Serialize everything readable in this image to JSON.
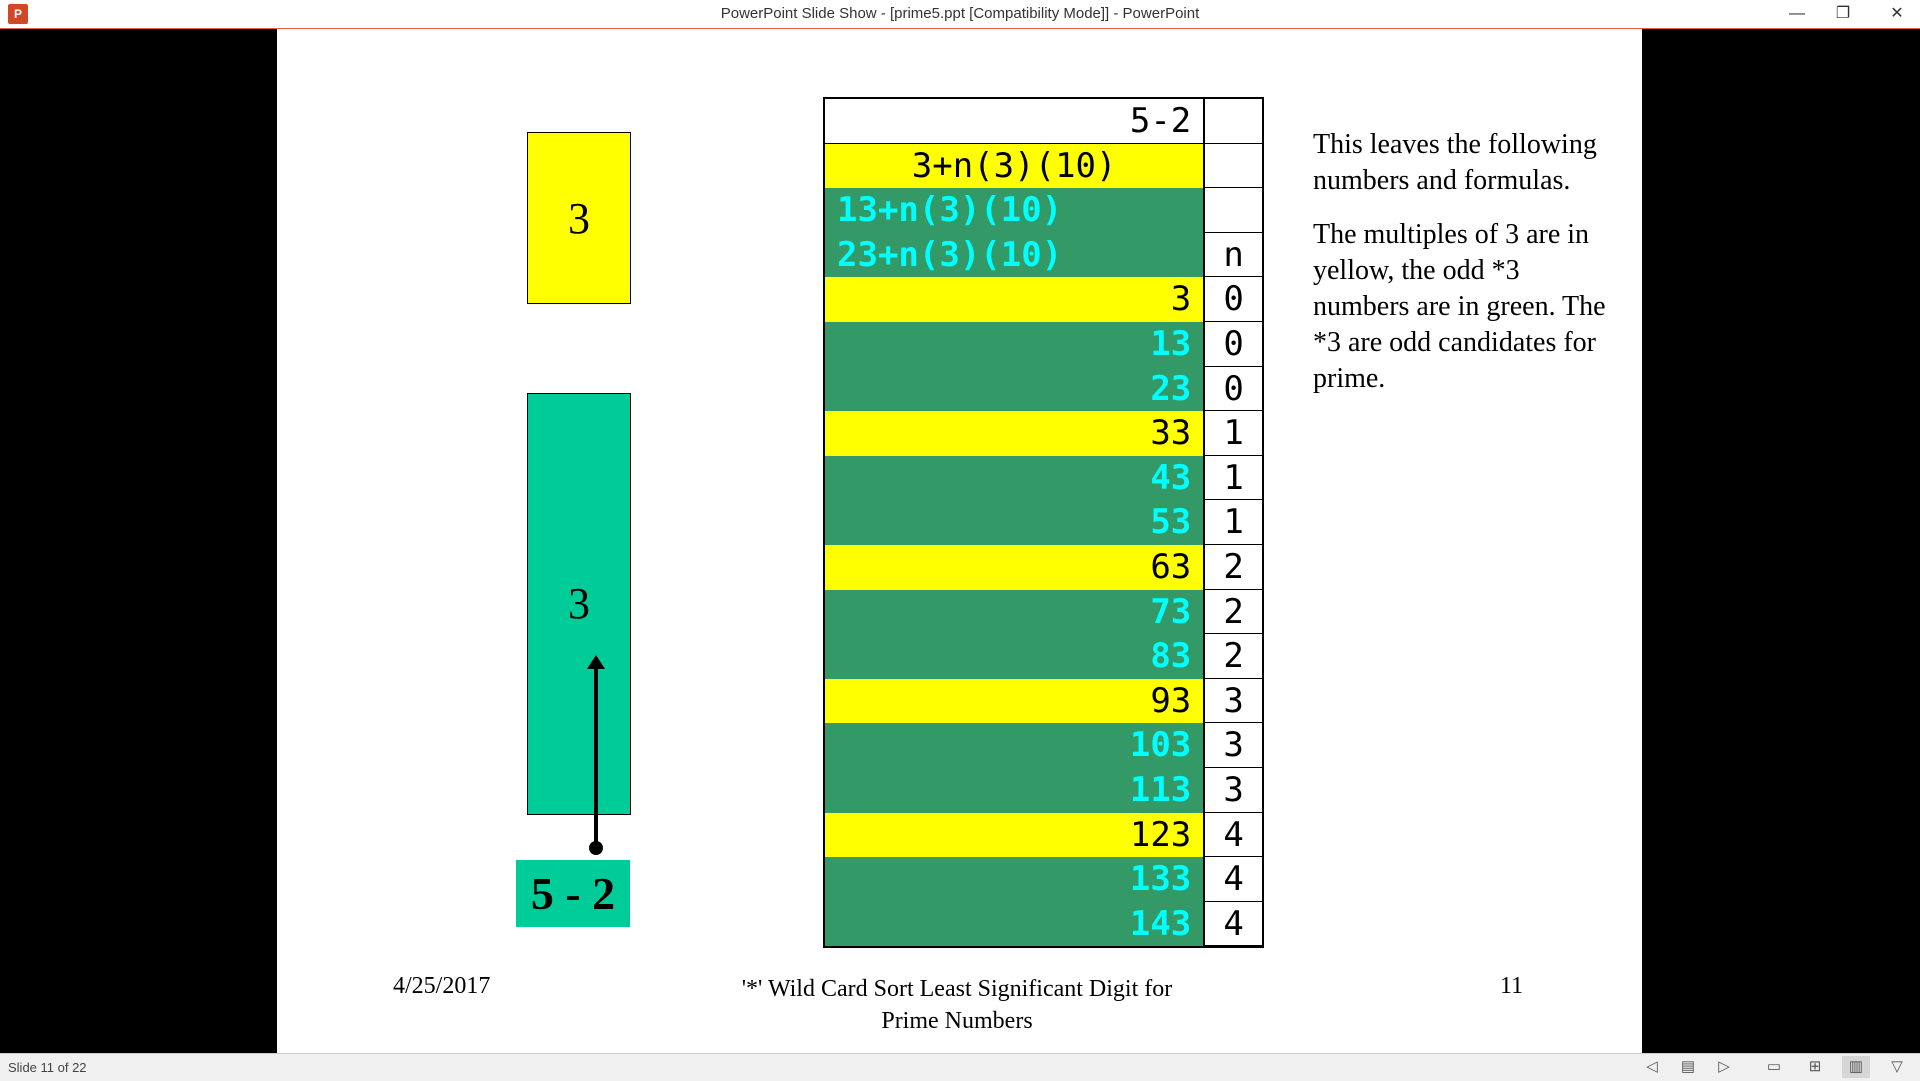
{
  "window": {
    "title": "PowerPoint Slide Show - [prime5.ppt [Compatibility Mode]] - PowerPoint",
    "app_icon_text": "P",
    "minimize": "—",
    "restore": "❐",
    "close": "✕"
  },
  "slide": {
    "box_yellow_label": "3",
    "box_green_label": "3",
    "label_bottom": "5 - 2",
    "table": {
      "rows": [
        {
          "a": "5-2",
          "b": "",
          "style": "white",
          "align": "right"
        },
        {
          "a": "3+n(3)(10)",
          "b": "",
          "style": "yellow",
          "align": "center"
        },
        {
          "a": "13+n(3)(10)",
          "b": "",
          "style": "green",
          "align": "left"
        },
        {
          "a": "23+n(3)(10)",
          "b": "n",
          "style": "green",
          "align": "left"
        },
        {
          "a": "3",
          "b": "0",
          "style": "yellow",
          "align": "right"
        },
        {
          "a": "13",
          "b": "0",
          "style": "green",
          "align": "right"
        },
        {
          "a": "23",
          "b": "0",
          "style": "green",
          "align": "right"
        },
        {
          "a": "33",
          "b": "1",
          "style": "yellow",
          "align": "right"
        },
        {
          "a": "43",
          "b": "1",
          "style": "green",
          "align": "right"
        },
        {
          "a": "53",
          "b": "1",
          "style": "green",
          "align": "right"
        },
        {
          "a": "63",
          "b": "2",
          "style": "yellow",
          "align": "right"
        },
        {
          "a": "73",
          "b": "2",
          "style": "green",
          "align": "right"
        },
        {
          "a": "83",
          "b": "2",
          "style": "green",
          "align": "right"
        },
        {
          "a": "93",
          "b": "3",
          "style": "yellow",
          "align": "right"
        },
        {
          "a": "103",
          "b": "3",
          "style": "green",
          "align": "right"
        },
        {
          "a": "113",
          "b": "3",
          "style": "green",
          "align": "right"
        },
        {
          "a": "123",
          "b": "4",
          "style": "yellow",
          "align": "right"
        },
        {
          "a": "133",
          "b": "4",
          "style": "green",
          "align": "right"
        },
        {
          "a": "143",
          "b": "4",
          "style": "green",
          "align": "right"
        }
      ]
    },
    "side_text_1": "This leaves the following numbers and formulas.",
    "side_text_2": "The multiples of 3 are in yellow, the odd *3 numbers are in green. The *3 are odd candidates for prime.",
    "footer_date": "4/25/2017",
    "footer_title": "'*' Wild Card Sort Least Significant Digit for Prime Numbers",
    "footer_page": "11"
  },
  "status": {
    "slide_count": "Slide 11 of 22",
    "icons": [
      "prev-icon",
      "notes-icon",
      "next-icon",
      "normal-view-icon",
      "slide-sorter-icon",
      "reading-view-icon",
      "slideshow-icon"
    ]
  },
  "colors": {
    "yellow": "#ffff00",
    "green_box": "#00cc99",
    "green_row": "#339966",
    "cyan_text": "#00ffff"
  }
}
